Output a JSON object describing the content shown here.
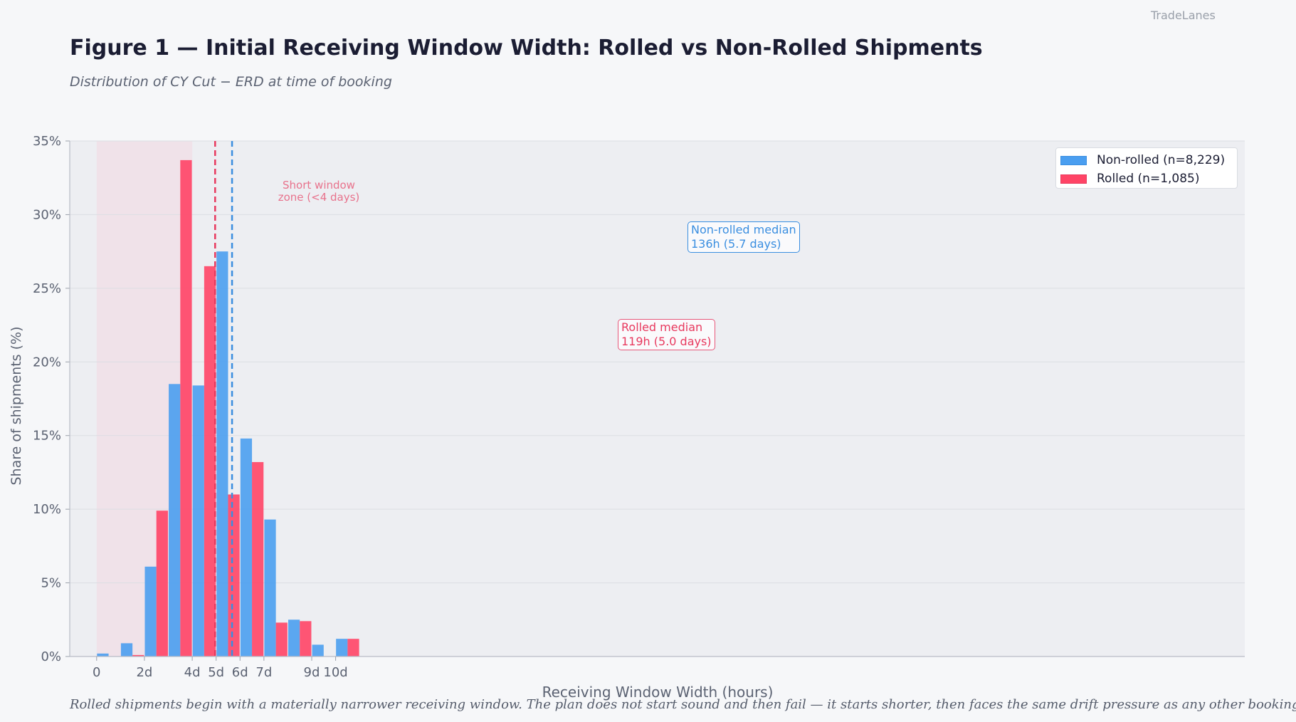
{
  "brand": "TradeLanes",
  "chart_data": {
    "type": "bar",
    "title": "Figure 1  —  Initial Receiving Window Width: Rolled vs Non-Rolled Shipments",
    "subtitle": "Distribution of CY Cut − ERD at time of booking",
    "xlabel": "Receiving Window Width (hours)",
    "ylabel": "Share of shipments (%)",
    "x_unit": "hours",
    "xlim": [
      -27,
      1153
    ],
    "ylim": [
      0,
      35
    ],
    "yticks": [
      0,
      5,
      10,
      15,
      20,
      25,
      30,
      35
    ],
    "ytick_labels": [
      "0%",
      "5%",
      "10%",
      "15%",
      "20%",
      "25%",
      "30%",
      "35%"
    ],
    "xticks": [
      0,
      48,
      96,
      120,
      144,
      168,
      216,
      240
    ],
    "xtick_labels": [
      "0",
      "2d",
      "4d",
      "5d",
      "6d",
      "7d",
      "9d",
      "10d"
    ],
    "grid": true,
    "legend_position": "top-right",
    "bin_width_hours": 24,
    "bins_start_hours": [
      0,
      24,
      48,
      72,
      96,
      120,
      144,
      168,
      192,
      216,
      240
    ],
    "series": [
      {
        "name": "Non-rolled  (n=8,229)",
        "color": "#4a9ef0",
        "values": [
          0.2,
          0.9,
          6.1,
          18.5,
          18.4,
          27.5,
          14.8,
          9.3,
          2.5,
          0.8,
          1.2
        ]
      },
      {
        "name": "Rolled  (n=1,085)",
        "color": "#ff4466",
        "values": [
          0,
          0.1,
          9.9,
          33.7,
          26.5,
          11.0,
          13.2,
          2.3,
          2.4,
          0,
          1.2
        ]
      }
    ],
    "short_zone": {
      "from_hours": 0,
      "to_hours": 96,
      "label_line1": "Short window",
      "label_line2": "zone (<4 days)"
    },
    "medians": [
      {
        "series": "Non-rolled",
        "hours": 136,
        "color": "#3a8ee0",
        "label_line1": "Non-rolled median",
        "label_line2": "136h  (5.7 days)"
      },
      {
        "series": "Rolled",
        "hours": 119,
        "color": "#e8395e",
        "label_line1": "Rolled median",
        "label_line2": "119h  (5.0 days)"
      }
    ],
    "caption": "Rolled shipments begin with a materially narrower receiving window. The plan does not start sound and then fail — it starts shorter, then faces the same drift pressure as any other booking."
  }
}
